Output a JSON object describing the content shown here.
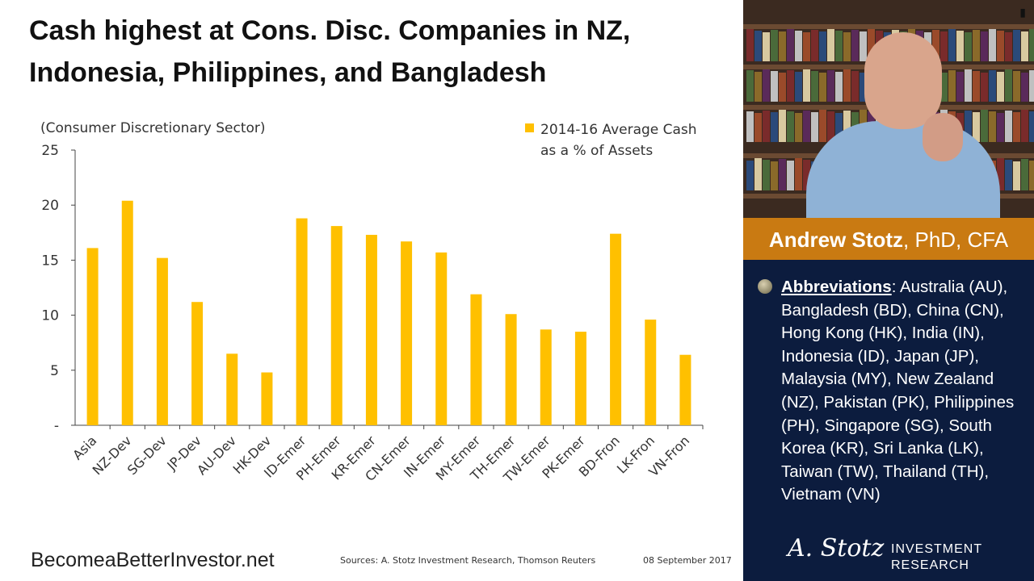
{
  "slide": {
    "title": "Cash highest at Cons. Disc. Companies in NZ, Indonesia, Philippines, and Bangladesh",
    "footer_site": "BecomeaBetterInvestor.net",
    "footer_sources": "Sources: A. Stotz Investment Research, Thomson Reuters",
    "footer_date": "08 September 2017"
  },
  "chart_data": {
    "type": "bar",
    "subtitle": "(Consumer Discretionary Sector)",
    "categories": [
      "Asia",
      "NZ-Dev",
      "SG-Dev",
      "JP-Dev",
      "AU-Dev",
      "HK-Dev",
      "ID-Emer",
      "PH-Emer",
      "KR-Emer",
      "CN-Emer",
      "IN-Emer",
      "MY-Emer",
      "TH-Emer",
      "TW-Emer",
      "PK-Emer",
      "BD-Fron",
      "LK-Fron",
      "VN-Fron"
    ],
    "series": [
      {
        "name": "2014-16 Average Cash as a % of Assets",
        "values": [
          16.1,
          20.4,
          15.2,
          11.2,
          6.5,
          4.8,
          18.8,
          18.1,
          17.3,
          16.7,
          15.7,
          11.9,
          10.1,
          8.7,
          8.5,
          17.4,
          9.6,
          6.4
        ]
      }
    ],
    "legend_line1": "2014-16 Average Cash",
    "legend_line2": "as a % of Assets",
    "legend_position": "top-right",
    "yticks": [
      "-",
      "5",
      "10",
      "15",
      "20",
      "25"
    ],
    "ylim": [
      0,
      25
    ],
    "bar_color": "#ffc000",
    "grid": false
  },
  "presenter": {
    "name": "Andrew Stotz",
    "credentials": ", PhD, CFA",
    "camera_icon": "camera-icon"
  },
  "abbreviations": {
    "heading": "Abbreviations",
    "text": ": Australia (AU), Bangladesh (BD), China (CN), Hong Kong (HK), India (IN), Indonesia (ID), Japan (JP), Malaysia (MY), New Zealand (NZ), Pakistan (PK), Philippines (PH), Singapore (SG), South Korea (KR), Sri Lanka (LK), Taiwan (TW), Thailand (TH), Vietnam (VN)"
  },
  "logo": {
    "script": "A. Stotz",
    "line1": "INVESTMENT",
    "line2": "RESEARCH"
  },
  "colors": {
    "panel_bg": "#0c1c3e",
    "name_bar": "#c97a12",
    "bar": "#ffc000"
  }
}
